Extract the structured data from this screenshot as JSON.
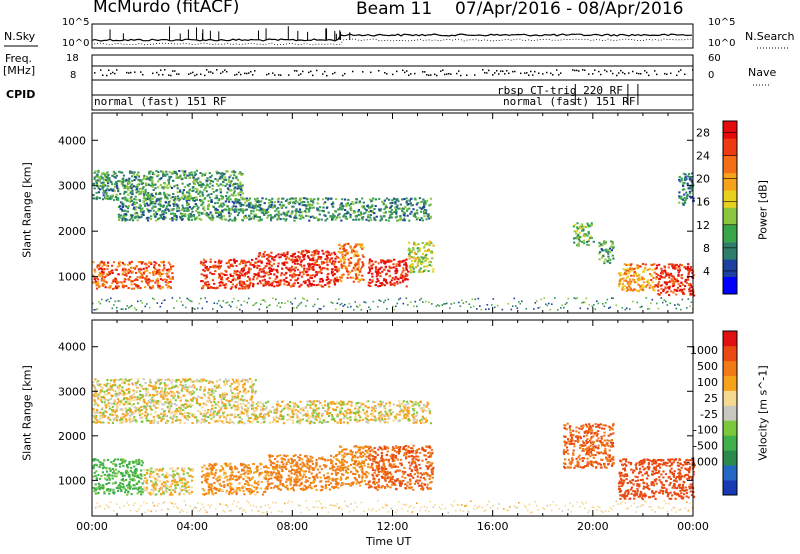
{
  "header": {
    "station": "McMurdo (fitACF)",
    "beam": "Beam 11",
    "date_range": "07/Apr/2016 - 08/Apr/2016"
  },
  "status_panels": {
    "nsky_label": "N.Sky",
    "nsearch_label": "N.Search",
    "nsky_ticks": [
      "10^5",
      "10^0"
    ],
    "nsearch_ticks": [
      "10^5",
      "10^0"
    ],
    "freq_label_top": "Freq.",
    "freq_label_bottom": "[MHz]",
    "freq_ticks": [
      "18",
      "8"
    ],
    "nave_label": "Nave",
    "nave_ticks": [
      "60",
      "0"
    ],
    "cpid_label": "CPID",
    "cpid_segments": [
      "normal (fast) 151 RF",
      "rbsp CT-trig 220 RF",
      "normal (fast) 151 RF"
    ]
  },
  "chart_data": [
    {
      "type": "heatmap",
      "name": "power",
      "xlabel": "Time UT",
      "ylabel": "Slant Range [km]",
      "x_range": [
        "00:00",
        "24:00"
      ],
      "ylim": [
        200,
        4600
      ],
      "y_ticks": [
        1000,
        2000,
        3000,
        4000
      ],
      "colorbar": {
        "label": "Power [dB]",
        "ticks": [
          4,
          8,
          12,
          16,
          20,
          24,
          28
        ],
        "range": [
          0,
          30
        ],
        "colors": [
          "#0000ff",
          "#1c3fa0",
          "#2f7e6c",
          "#39a54a",
          "#8cc63e",
          "#e8d21f",
          "#f7a21b",
          "#f46e16",
          "#ee3a12",
          "#e60b0b"
        ]
      },
      "regions": [
        {
          "t": [
            0.0,
            3.2
          ],
          "r": [
            750,
            1350
          ],
          "power": 24
        },
        {
          "t": [
            4.3,
            6.5
          ],
          "r": [
            750,
            1400
          ],
          "power": 26
        },
        {
          "t": [
            6.5,
            9.8
          ],
          "r": [
            800,
            1600
          ],
          "power": 27
        },
        {
          "t": [
            9.8,
            10.8
          ],
          "r": [
            900,
            1750
          ],
          "power": 22
        },
        {
          "t": [
            11.0,
            12.6
          ],
          "r": [
            800,
            1400
          ],
          "power": 28
        },
        {
          "t": [
            12.6,
            13.6
          ],
          "r": [
            1100,
            1800
          ],
          "power": 14
        },
        {
          "t": [
            0.0,
            6.0
          ],
          "r": [
            2700,
            3350
          ],
          "power": 10
        },
        {
          "t": [
            1.0,
            13.5
          ],
          "r": [
            2250,
            2750
          ],
          "power": 9
        },
        {
          "t": [
            19.2,
            20.0
          ],
          "r": [
            1700,
            2200
          ],
          "power": 12
        },
        {
          "t": [
            20.2,
            20.8
          ],
          "r": [
            1300,
            1800
          ],
          "power": 10
        },
        {
          "t": [
            21.0,
            22.5
          ],
          "r": [
            700,
            1300
          ],
          "power": 20
        },
        {
          "t": [
            22.5,
            24.0
          ],
          "r": [
            600,
            1300
          ],
          "power": 27
        },
        {
          "t": [
            23.4,
            24.0
          ],
          "r": [
            2600,
            3300
          ],
          "power": 8
        }
      ]
    },
    {
      "type": "heatmap",
      "name": "velocity",
      "xlabel": "Time UT",
      "ylabel": "Slant Range [km]",
      "x_range": [
        "00:00",
        "24:00"
      ],
      "x_ticks": [
        "00:00",
        "04:00",
        "08:00",
        "12:00",
        "16:00",
        "20:00",
        "00:00"
      ],
      "ylim": [
        200,
        4600
      ],
      "y_ticks": [
        1000,
        2000,
        3000,
        4000
      ],
      "colorbar": {
        "label": "Velocity [m s^-1]",
        "ticks": [
          "1000",
          "500",
          "100",
          "25",
          "-25",
          "-100",
          "-500",
          "-1000"
        ],
        "colors": [
          "#1a39b5",
          "#2366c4",
          "#2a8a4c",
          "#3fb04a",
          "#7cc83c",
          "#c8c8c0",
          "#f6d890",
          "#f7a21b",
          "#f07a16",
          "#ea4a12",
          "#e01010"
        ]
      },
      "regions": [
        {
          "t": [
            0.0,
            2.0
          ],
          "r": [
            700,
            1500
          ],
          "velocity": 150
        },
        {
          "t": [
            2.0,
            4.0
          ],
          "r": [
            700,
            1300
          ],
          "velocity": 0
        },
        {
          "t": [
            4.3,
            7.0
          ],
          "r": [
            700,
            1400
          ],
          "velocity": -100
        },
        {
          "t": [
            7.0,
            9.8
          ],
          "r": [
            800,
            1600
          ],
          "velocity": -150
        },
        {
          "t": [
            9.8,
            11.0
          ],
          "r": [
            900,
            1800
          ],
          "velocity": -120
        },
        {
          "t": [
            11.0,
            13.6
          ],
          "r": [
            800,
            1800
          ],
          "velocity": -300
        },
        {
          "t": [
            0.0,
            6.5
          ],
          "r": [
            2300,
            3300
          ],
          "velocity": 0
        },
        {
          "t": [
            6.5,
            13.5
          ],
          "r": [
            2300,
            2800
          ],
          "velocity": 0
        },
        {
          "t": [
            18.8,
            20.8
          ],
          "r": [
            1300,
            2300
          ],
          "velocity": -300
        },
        {
          "t": [
            21.0,
            24.0
          ],
          "r": [
            600,
            1500
          ],
          "velocity": -400
        }
      ]
    }
  ]
}
